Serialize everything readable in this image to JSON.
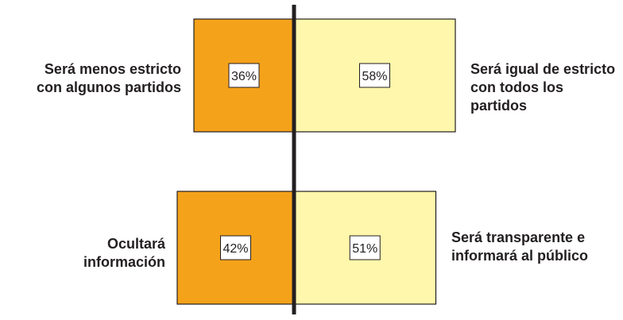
{
  "chart_data": {
    "type": "bar",
    "subtype": "diverging-stacked",
    "colors": {
      "left": "#f5a21b",
      "right": "#fff7ab",
      "stroke": "#231f20",
      "value_box_fill": "#ffffff"
    },
    "rows": [
      {
        "left_label": "Será menos estricto con algunos partidos",
        "right_label": "Será igual de estricto con todos los partidos",
        "left_value": 36,
        "right_value": 58,
        "left_text": "36%",
        "right_text": "58%"
      },
      {
        "left_label": "Ocultará información",
        "right_label": "Será transparente e informará al público",
        "left_value": 42,
        "right_value": 51,
        "left_text": "42%",
        "right_text": "51%"
      }
    ]
  }
}
